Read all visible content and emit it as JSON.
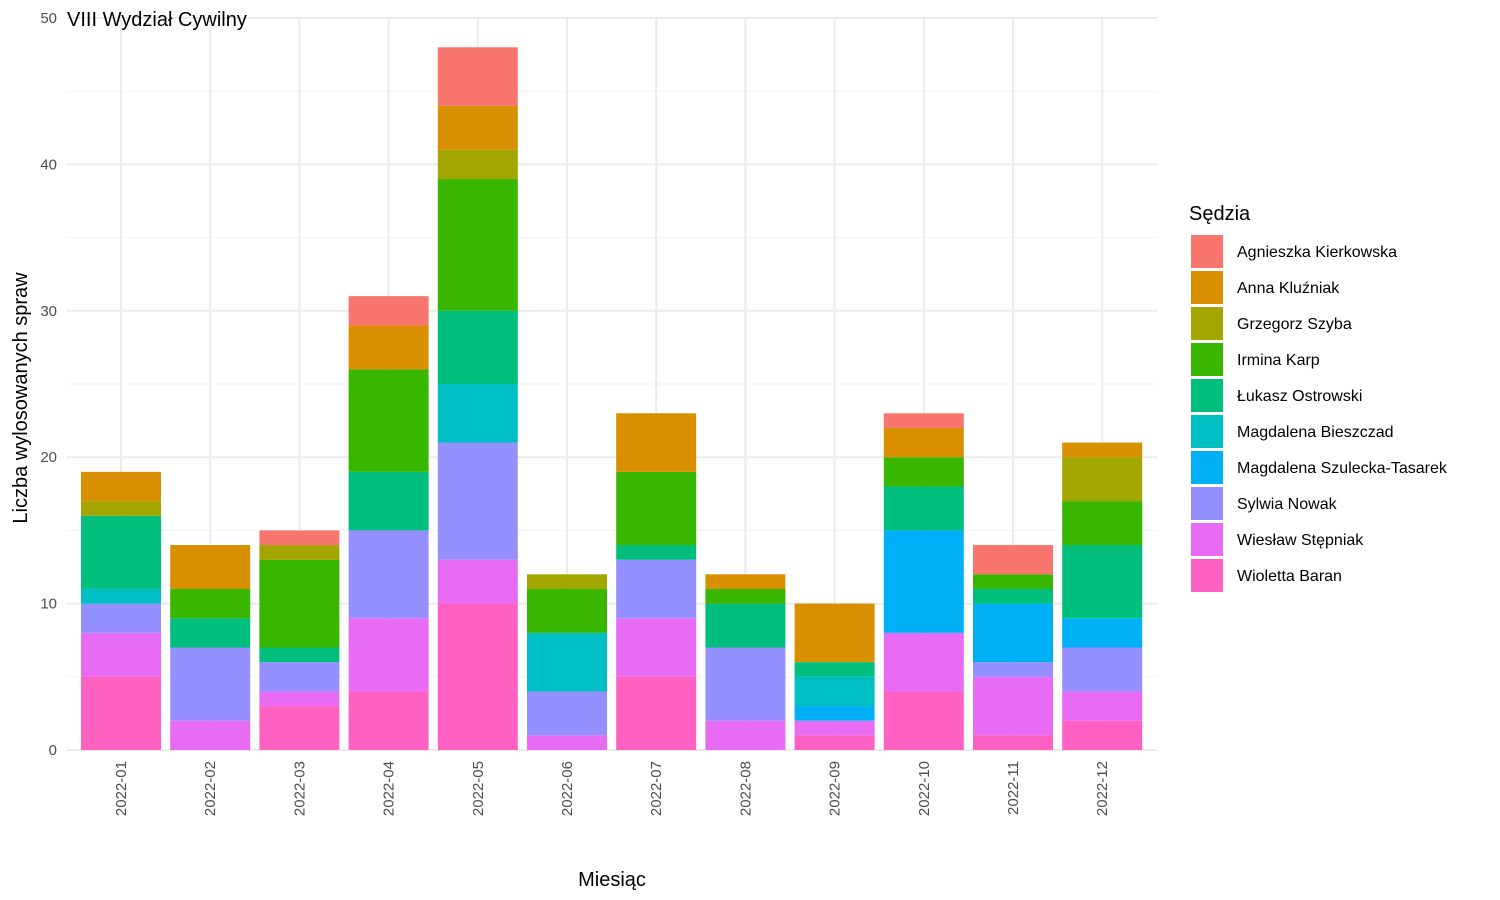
{
  "chart_data": {
    "type": "bar",
    "stacked": true,
    "title": "VIII Wydział Cywilny",
    "xlabel": "Miesiąc",
    "ylabel": "Liczba wylosowanych spraw",
    "ylim": [
      0,
      50
    ],
    "yticks": [
      0,
      10,
      20,
      30,
      40,
      50
    ],
    "grid": true,
    "legend_title": "Sędzia",
    "legend_position": "right",
    "categories": [
      "2022-01",
      "2022-02",
      "2022-03",
      "2022-04",
      "2022-05",
      "2022-06",
      "2022-07",
      "2022-08",
      "2022-09",
      "2022-10",
      "2022-11",
      "2022-12"
    ],
    "series": [
      {
        "name": "Wioletta Baran",
        "color": "#FF61C3",
        "values": [
          5,
          0,
          3,
          4,
          10,
          0,
          5,
          0,
          1,
          4,
          1,
          2
        ]
      },
      {
        "name": "Wiesław Stępniak",
        "color": "#E76BF3",
        "values": [
          3,
          2,
          1,
          5,
          3,
          1,
          4,
          2,
          1,
          4,
          4,
          2
        ]
      },
      {
        "name": "Sylwia Nowak",
        "color": "#9590FF",
        "values": [
          2,
          5,
          2,
          6,
          8,
          3,
          4,
          5,
          0,
          0,
          1,
          3
        ]
      },
      {
        "name": "Magdalena Szulecka-Tasarek",
        "color": "#00B0F6",
        "values": [
          0,
          0,
          0,
          0,
          0,
          0,
          0,
          0,
          1,
          7,
          4,
          2
        ]
      },
      {
        "name": "Magdalena Bieszczad",
        "color": "#00BFC4",
        "values": [
          1,
          0,
          0,
          0,
          4,
          4,
          0,
          0,
          2,
          0,
          0,
          0
        ]
      },
      {
        "name": "Łukasz Ostrowski",
        "color": "#00BF7D",
        "values": [
          5,
          2,
          1,
          4,
          5,
          0,
          1,
          3,
          1,
          3,
          1,
          5
        ]
      },
      {
        "name": "Irmina Karp",
        "color": "#39B600",
        "values": [
          0,
          2,
          6,
          7,
          9,
          3,
          5,
          1,
          0,
          2,
          1,
          3
        ]
      },
      {
        "name": "Grzegorz Szyba",
        "color": "#A3A500",
        "values": [
          1,
          0,
          1,
          0,
          2,
          1,
          0,
          0,
          0,
          0,
          0,
          3
        ]
      },
      {
        "name": "Anna Kluźniak",
        "color": "#D89000",
        "values": [
          2,
          3,
          0,
          3,
          3,
          0,
          4,
          1,
          4,
          2,
          0,
          1
        ]
      },
      {
        "name": "Agnieszka Kierkowska",
        "color": "#F8766D",
        "values": [
          0,
          0,
          1,
          2,
          4,
          0,
          0,
          0,
          0,
          1,
          2,
          0
        ]
      }
    ],
    "legend_order": [
      "Agnieszka Kierkowska",
      "Anna Kluźniak",
      "Grzegorz Szyba",
      "Irmina Karp",
      "Łukasz Ostrowski",
      "Magdalena Bieszczad",
      "Magdalena Szulecka-Tasarek",
      "Sylwia Nowak",
      "Wiesław Stępniak",
      "Wioletta Baran"
    ]
  }
}
